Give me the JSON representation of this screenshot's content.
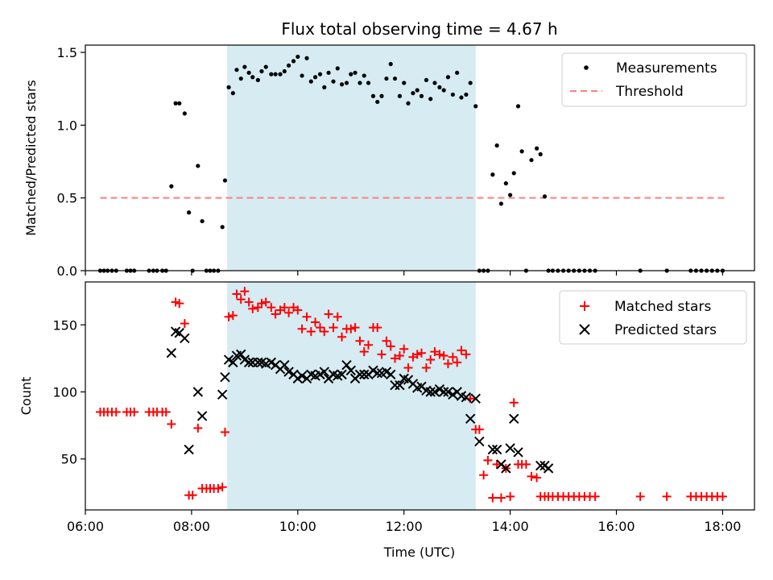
{
  "title": "Flux total observing time = 4.67 h",
  "colors": {
    "measurements": "#000000",
    "threshold": "#ff7f7f",
    "matched": "#ff0000",
    "predicted": "#000000",
    "shade": "#add8e6"
  },
  "chart_data": [
    {
      "type": "scatter",
      "ylabel": "Matched/Predicted stars",
      "xlim": [
        6.0,
        18.6
      ],
      "ylim": [
        0,
        1.55
      ],
      "yticks": [
        0.0,
        0.5,
        1.0,
        1.5
      ],
      "ytick_labels": [
        "0.0",
        "0.5",
        "1.0",
        "1.5"
      ],
      "legend_position": "top-right",
      "shaded_interval": [
        8.67,
        13.35
      ],
      "series": [
        {
          "name": "Measurements",
          "marker": "dot",
          "x": [
            6.28,
            6.35,
            6.42,
            6.5,
            6.58,
            6.78,
            6.85,
            6.92,
            7.2,
            7.28,
            7.35,
            7.45,
            7.52,
            7.62,
            7.7,
            7.77,
            7.87,
            7.95,
            8.02,
            8.12,
            8.2,
            8.28,
            8.35,
            8.42,
            8.5,
            8.58,
            8.63,
            8.7,
            8.78,
            8.85,
            8.93,
            9.0,
            9.08,
            9.15,
            9.25,
            9.32,
            9.4,
            9.5,
            9.58,
            9.67,
            9.75,
            9.83,
            9.92,
            10.0,
            10.08,
            10.17,
            10.25,
            10.33,
            10.42,
            10.5,
            10.58,
            10.67,
            10.75,
            10.83,
            10.92,
            11.0,
            11.08,
            11.17,
            11.25,
            11.33,
            11.42,
            11.5,
            11.58,
            11.67,
            11.75,
            11.83,
            11.92,
            12.0,
            12.08,
            12.17,
            12.25,
            12.33,
            12.42,
            12.5,
            12.58,
            12.67,
            12.75,
            12.83,
            12.92,
            13.0,
            13.08,
            13.17,
            13.25,
            13.35,
            13.42,
            13.5,
            13.58,
            13.67,
            13.75,
            13.83,
            13.92,
            14.0,
            14.07,
            14.15,
            14.22,
            14.3,
            14.4,
            14.5,
            14.57,
            14.65,
            14.72,
            14.8,
            14.9,
            15.0,
            15.1,
            15.2,
            15.3,
            15.4,
            15.5,
            15.6,
            16.45,
            16.95,
            17.4,
            17.5,
            17.6,
            17.7,
            17.8,
            17.9,
            18.0
          ],
          "y": [
            0,
            0,
            0,
            0,
            0,
            0,
            0,
            0,
            0,
            0,
            0,
            0,
            0,
            0.58,
            1.15,
            1.15,
            1.08,
            0.4,
            0,
            0.72,
            0.34,
            0,
            0,
            0,
            0,
            0.3,
            0.62,
            1.26,
            1.22,
            1.38,
            1.32,
            1.4,
            1.36,
            1.33,
            1.31,
            1.37,
            1.4,
            1.35,
            1.35,
            1.35,
            1.37,
            1.41,
            1.44,
            1.47,
            1.34,
            1.46,
            1.3,
            1.33,
            1.35,
            1.26,
            1.36,
            1.3,
            1.39,
            1.28,
            1.29,
            1.35,
            1.36,
            1.29,
            1.34,
            1.29,
            1.2,
            1.16,
            1.2,
            1.32,
            1.42,
            1.32,
            1.2,
            1.29,
            1.15,
            1.22,
            1.24,
            1.2,
            1.31,
            1.18,
            1.29,
            1.26,
            1.24,
            1.33,
            1.21,
            1.36,
            1.19,
            1.21,
            1.29,
            1.13,
            0,
            0,
            0,
            0.66,
            0.86,
            0.46,
            0.6,
            0.52,
            0.67,
            1.13,
            0.82,
            0,
            0.76,
            0.84,
            0.8,
            0.51,
            0,
            0,
            0,
            0,
            0,
            0,
            0,
            0,
            0,
            0,
            0,
            0,
            0,
            0,
            0,
            0,
            0,
            0,
            0
          ]
        },
        {
          "name": "Threshold",
          "style": "dashed",
          "x": [
            6.28,
            18.05
          ],
          "y": [
            0.5,
            0.5
          ]
        }
      ]
    },
    {
      "type": "scatter",
      "ylabel": "Count",
      "xlabel": "Time (UTC)",
      "xlim": [
        6.0,
        18.6
      ],
      "ylim": [
        12,
        182
      ],
      "yticks": [
        50,
        100,
        150
      ],
      "ytick_labels": [
        "50",
        "100",
        "150"
      ],
      "xticks": [
        6,
        8,
        10,
        12,
        14,
        16,
        18
      ],
      "xtick_labels": [
        "06:00",
        "08:00",
        "10:00",
        "12:00",
        "14:00",
        "16:00",
        "18:00"
      ],
      "legend_position": "top-right",
      "shaded_interval": [
        8.67,
        13.35
      ],
      "series": [
        {
          "name": "Matched stars",
          "marker": "plus",
          "x": [
            6.28,
            6.35,
            6.42,
            6.5,
            6.58,
            6.78,
            6.85,
            6.92,
            7.2,
            7.28,
            7.35,
            7.45,
            7.52,
            7.62,
            7.7,
            7.77,
            7.87,
            7.95,
            8.02,
            8.12,
            8.2,
            8.28,
            8.35,
            8.42,
            8.5,
            8.58,
            8.63,
            8.7,
            8.78,
            8.85,
            8.93,
            9.0,
            9.08,
            9.15,
            9.25,
            9.32,
            9.4,
            9.5,
            9.58,
            9.67,
            9.75,
            9.83,
            9.92,
            10.0,
            10.08,
            10.17,
            10.25,
            10.33,
            10.42,
            10.5,
            10.58,
            10.67,
            10.75,
            10.83,
            10.92,
            11.0,
            11.08,
            11.17,
            11.25,
            11.33,
            11.42,
            11.5,
            11.58,
            11.67,
            11.75,
            11.83,
            11.92,
            12.0,
            12.08,
            12.17,
            12.25,
            12.33,
            12.42,
            12.5,
            12.58,
            12.67,
            12.75,
            12.83,
            12.92,
            13.0,
            13.08,
            13.17,
            13.25,
            13.35,
            13.42,
            13.5,
            13.58,
            13.67,
            13.75,
            13.83,
            13.92,
            14.0,
            14.07,
            14.15,
            14.22,
            14.3,
            14.4,
            14.5,
            14.57,
            14.65,
            14.72,
            14.8,
            14.9,
            15.0,
            15.1,
            15.2,
            15.3,
            15.4,
            15.5,
            15.6,
            16.45,
            16.95,
            17.4,
            17.5,
            17.6,
            17.7,
            17.8,
            17.9,
            18.0
          ],
          "y": [
            85,
            85,
            85,
            85,
            85,
            85,
            85,
            85,
            85,
            85,
            85,
            85,
            85,
            76,
            167,
            166,
            151,
            23,
            23,
            73,
            28,
            28,
            28,
            28,
            28,
            29,
            70,
            156,
            157,
            173,
            169,
            175,
            167,
            162,
            163,
            166,
            167,
            163,
            158,
            161,
            163,
            159,
            163,
            161,
            147,
            156,
            145,
            152,
            148,
            145,
            158,
            148,
            156,
            141,
            147,
            147,
            148,
            138,
            130,
            135,
            148,
            148,
            128,
            138,
            134,
            125,
            127,
            132,
            118,
            126,
            128,
            129,
            118,
            124,
            130,
            128,
            127,
            121,
            126,
            122,
            131,
            128,
            95,
            72,
            72,
            38,
            49,
            21,
            46,
            21,
            43,
            22,
            92,
            46,
            46,
            46,
            37,
            36,
            22,
            22,
            22,
            22,
            22,
            22,
            22,
            22,
            22,
            22,
            22,
            22,
            22,
            22,
            22,
            22,
            22,
            22,
            22,
            22,
            22
          ]
        },
        {
          "name": "Predicted stars",
          "marker": "cross",
          "x": [
            7.62,
            7.7,
            7.77,
            7.87,
            7.95,
            8.12,
            8.2,
            8.58,
            8.63,
            8.7,
            8.78,
            8.85,
            8.93,
            9.0,
            9.08,
            9.15,
            9.25,
            9.32,
            9.4,
            9.5,
            9.58,
            9.67,
            9.75,
            9.83,
            9.92,
            10.0,
            10.08,
            10.17,
            10.25,
            10.33,
            10.42,
            10.5,
            10.58,
            10.67,
            10.75,
            10.83,
            10.92,
            11.0,
            11.08,
            11.17,
            11.25,
            11.33,
            11.42,
            11.5,
            11.58,
            11.67,
            11.75,
            11.83,
            11.92,
            12.0,
            12.08,
            12.17,
            12.25,
            12.33,
            12.42,
            12.5,
            12.58,
            12.67,
            12.75,
            12.83,
            12.92,
            13.0,
            13.08,
            13.17,
            13.25,
            13.35,
            13.42,
            13.67,
            13.75,
            13.83,
            13.92,
            14.0,
            14.07,
            14.15,
            14.57,
            14.65,
            14.72
          ],
          "y": [
            129,
            145,
            144,
            140,
            57,
            100,
            82,
            98,
            111,
            124,
            122,
            127,
            128,
            124,
            122,
            122,
            122,
            122,
            121,
            122,
            120,
            117,
            120,
            115,
            113,
            110,
            112,
            110,
            113,
            112,
            113,
            115,
            110,
            113,
            112,
            113,
            120,
            116,
            110,
            113,
            113,
            113,
            116,
            114,
            114,
            115,
            113,
            105,
            105,
            110,
            109,
            106,
            103,
            104,
            101,
            100,
            100,
            102,
            100,
            100,
            98,
            100,
            97,
            96,
            80,
            95,
            63,
            57,
            57,
            46,
            43,
            58,
            80,
            55,
            45,
            45,
            43
          ]
        }
      ]
    }
  ]
}
